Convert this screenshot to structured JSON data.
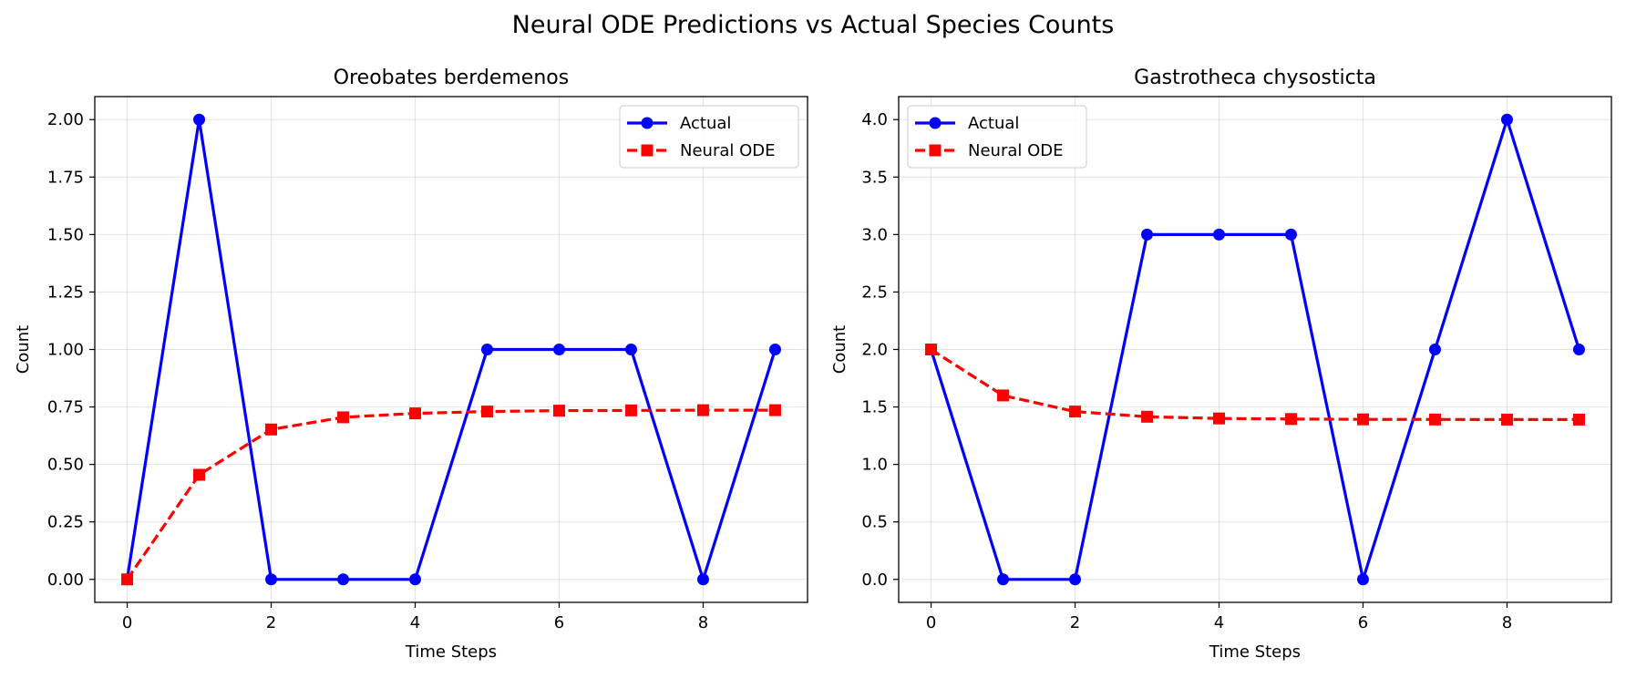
{
  "figure": {
    "title": "Neural ODE Predictions vs Actual Species Counts"
  },
  "chart_data": [
    {
      "type": "line",
      "title": "Oreobates berdemenos",
      "xlabel": "Time Steps",
      "ylabel": "Count",
      "x": [
        0,
        1,
        2,
        3,
        4,
        5,
        6,
        7,
        8,
        9
      ],
      "xlim": [
        -0.45,
        9.45
      ],
      "ylim": [
        -0.1,
        2.1
      ],
      "xticks": [
        0,
        2,
        4,
        6,
        8
      ],
      "xtick_labels": [
        "0",
        "2",
        "4",
        "6",
        "8"
      ],
      "yticks": [
        0,
        0.25,
        0.5,
        0.75,
        1.0,
        1.25,
        1.5,
        1.75,
        2.0
      ],
      "ytick_labels": [
        "0.00",
        "0.25",
        "0.50",
        "0.75",
        "1.00",
        "1.25",
        "1.50",
        "1.75",
        "2.00"
      ],
      "grid": true,
      "legend": "top-right",
      "series": [
        {
          "name": "Actual",
          "color": "#0000ff",
          "line": "solid",
          "marker": "circle",
          "values": [
            0,
            2,
            0,
            0,
            0,
            1,
            1,
            1,
            0,
            1
          ]
        },
        {
          "name": "Neural ODE",
          "color": "#ff0000",
          "line": "dashed",
          "marker": "square",
          "values": [
            0,
            0.455,
            0.652,
            0.705,
            0.722,
            0.73,
            0.734,
            0.735,
            0.736,
            0.736
          ]
        }
      ]
    },
    {
      "type": "line",
      "title": "Gastrotheca chysosticta",
      "xlabel": "Time Steps",
      "ylabel": "Count",
      "x": [
        0,
        1,
        2,
        3,
        4,
        5,
        6,
        7,
        8,
        9
      ],
      "xlim": [
        -0.45,
        9.45
      ],
      "ylim": [
        -0.2,
        4.2
      ],
      "xticks": [
        0,
        2,
        4,
        6,
        8
      ],
      "xtick_labels": [
        "0",
        "2",
        "4",
        "6",
        "8"
      ],
      "yticks": [
        0,
        0.5,
        1.0,
        1.5,
        2.0,
        2.5,
        3.0,
        3.5,
        4.0
      ],
      "ytick_labels": [
        "0.0",
        "0.5",
        "1.0",
        "1.5",
        "2.0",
        "2.5",
        "3.0",
        "3.5",
        "4.0"
      ],
      "grid": true,
      "legend": "top-left",
      "series": [
        {
          "name": "Actual",
          "color": "#0000ff",
          "line": "solid",
          "marker": "circle",
          "values": [
            2,
            0,
            0,
            3,
            3,
            3,
            0,
            2,
            4,
            2
          ]
        },
        {
          "name": "Neural ODE",
          "color": "#ff0000",
          "line": "dashed",
          "marker": "square",
          "values": [
            2.0,
            1.6,
            1.46,
            1.415,
            1.4,
            1.395,
            1.392,
            1.391,
            1.39,
            1.39
          ]
        }
      ]
    }
  ]
}
